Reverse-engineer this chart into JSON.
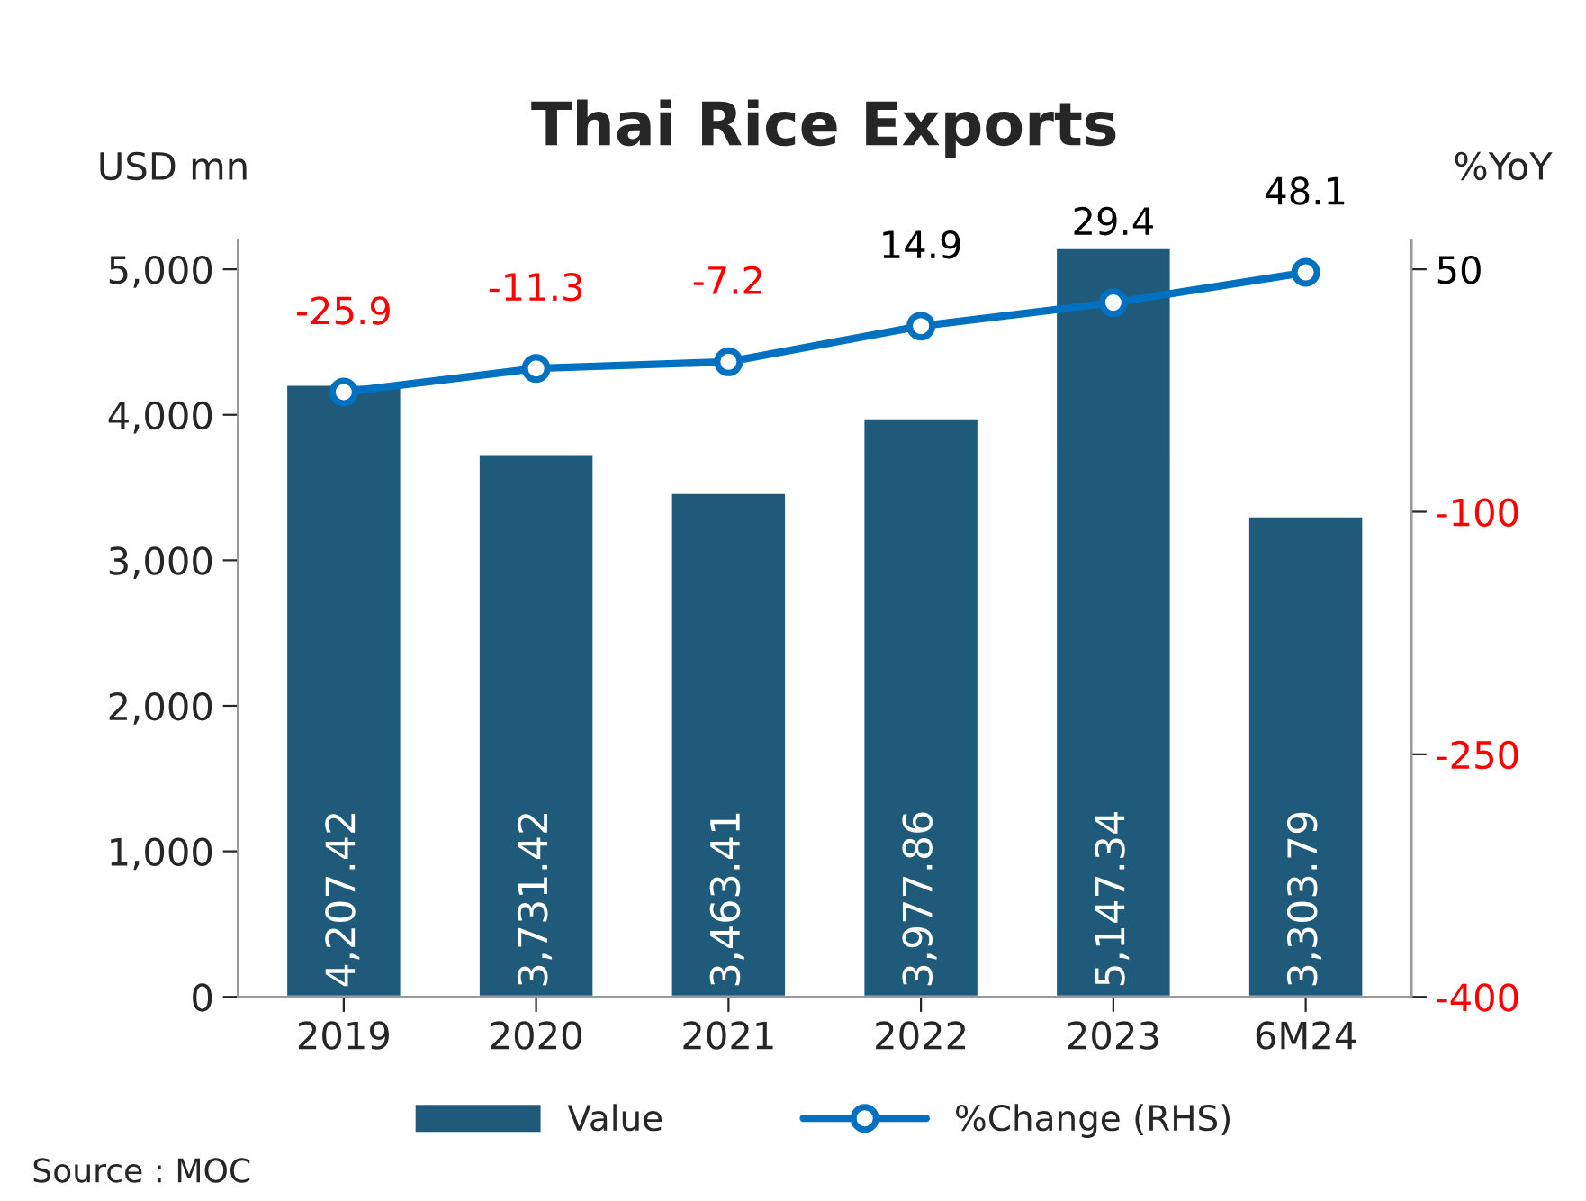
{
  "chart_data": {
    "type": "bar",
    "title": "Thai Rice Exports",
    "ylabel": "USD mn",
    "y2label": "%YoY",
    "categories": [
      "2019",
      "2020",
      "2021",
      "2022",
      "2023",
      "6M24"
    ],
    "series": [
      {
        "name": "Value",
        "color": "#1f5a7a",
        "values": [
          4207.42,
          3731.42,
          3463.41,
          3977.86,
          5147.34,
          3303.79
        ],
        "value_labels": [
          "4,207.42",
          "3,731.42",
          "3,463.41",
          "3,977.86",
          "5,147.34",
          "3,303.79"
        ]
      },
      {
        "name": "%Change (RHS)",
        "type": "line",
        "axis": "y2",
        "color": "#0070c0",
        "marker": "circle",
        "values": [
          -25.9,
          -11.3,
          -7.2,
          14.9,
          29.4,
          48.1
        ]
      }
    ],
    "ylim": [
      0,
      5200
    ],
    "yticks": [
      {
        "value": 0,
        "label": "0"
      },
      {
        "value": 1000,
        "label": "1,000"
      },
      {
        "value": 2000,
        "label": "2,000"
      },
      {
        "value": 3000,
        "label": "3,000"
      },
      {
        "value": 4000,
        "label": "4,000"
      },
      {
        "value": 5000,
        "label": "5,000"
      }
    ],
    "y2lim": [
      -400,
      68
    ],
    "y2ticks": [
      -400,
      -250,
      -100,
      50
    ],
    "data_labels": true,
    "grid": false,
    "legend": "bottom",
    "annotations": [
      "Source : MOC"
    ]
  }
}
